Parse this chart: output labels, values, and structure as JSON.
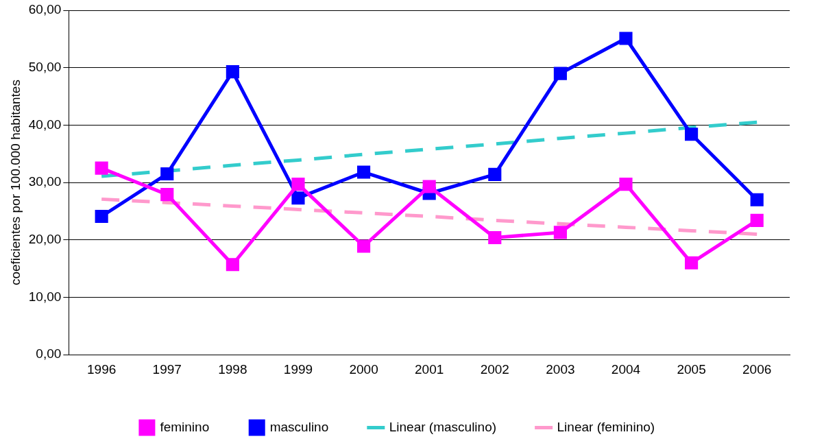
{
  "chart_data": {
    "type": "line",
    "ylabel": "coeficientes por 100.000 habitantes",
    "categories": [
      "1996",
      "1997",
      "1998",
      "1999",
      "2000",
      "2001",
      "2002",
      "2003",
      "2004",
      "2005",
      "2006"
    ],
    "series": [
      {
        "name": "feminino",
        "color": "#ff00ff",
        "marker": "square",
        "line_style": "solid",
        "values": [
          32.5,
          27.9,
          15.7,
          29.7,
          18.9,
          29.3,
          20.4,
          21.3,
          29.7,
          16.0,
          23.4
        ]
      },
      {
        "name": "masculino",
        "color": "#0000ff",
        "marker": "square",
        "line_style": "solid",
        "values": [
          24.1,
          31.5,
          49.3,
          27.3,
          31.8,
          28.1,
          31.4,
          49.0,
          55.1,
          38.4,
          27.0
        ]
      },
      {
        "name": "Linear (masculino)",
        "color": "#33cccc",
        "marker": "none",
        "line_style": "dashed",
        "values": [
          31.1,
          32.0,
          33.0,
          33.9,
          34.9,
          35.8,
          36.7,
          37.7,
          38.6,
          39.6,
          40.5
        ]
      },
      {
        "name": "Linear (feminino)",
        "color": "#ff99cc",
        "marker": "none",
        "line_style": "dashed",
        "values": [
          27.1,
          26.5,
          25.9,
          25.3,
          24.7,
          24.1,
          23.4,
          22.8,
          22.2,
          21.6,
          21.0
        ]
      }
    ],
    "ylim": [
      0,
      60
    ],
    "yticks": [
      {
        "value": 0,
        "label": "0,00"
      },
      {
        "value": 10,
        "label": "10,00"
      },
      {
        "value": 20,
        "label": "20,00"
      },
      {
        "value": 30,
        "label": "30,00"
      },
      {
        "value": 40,
        "label": "40,00"
      },
      {
        "value": 50,
        "label": "50,00"
      },
      {
        "value": 60,
        "label": "60,00"
      }
    ],
    "grid": "y",
    "legend": "bottom"
  }
}
